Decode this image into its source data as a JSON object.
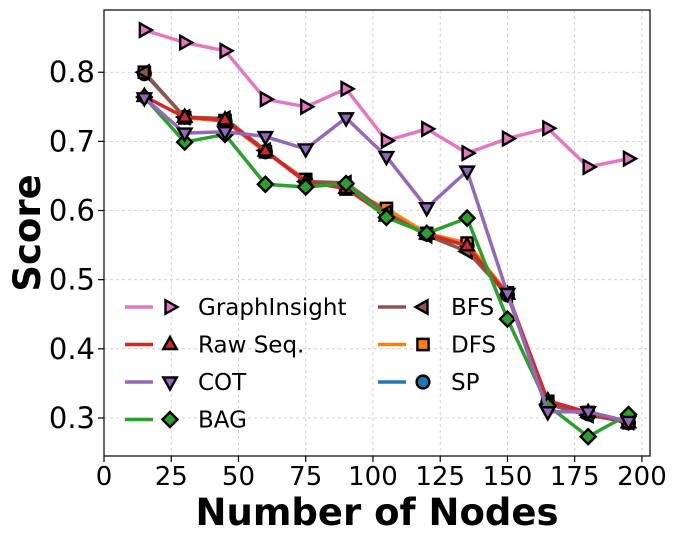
{
  "chart_data": {
    "type": "line",
    "xlabel": "Number of Nodes",
    "ylabel": "Score",
    "xlim": [
      0,
      203
    ],
    "ylim": [
      0.245,
      0.89
    ],
    "xticks": [
      0,
      25,
      50,
      75,
      100,
      125,
      150,
      175,
      200
    ],
    "yticks": [
      0.3,
      0.4,
      0.5,
      0.6,
      0.7,
      0.8
    ],
    "grid": true,
    "legend_position": "lower-left",
    "x": [
      15,
      30,
      45,
      60,
      75,
      90,
      105,
      120,
      135,
      150,
      165,
      180,
      195
    ],
    "series": [
      {
        "name": "GraphInsight",
        "color": "#e377c2",
        "marker": "triangle-right",
        "values": [
          0.861,
          0.843,
          0.831,
          0.761,
          0.75,
          0.776,
          0.701,
          0.718,
          0.683,
          0.704,
          0.719,
          0.663,
          0.675
        ]
      },
      {
        "name": "Raw Seq.",
        "color": "#d62728",
        "marker": "triangle-up",
        "values": [
          0.765,
          0.735,
          0.731,
          0.686,
          0.641,
          0.632,
          0.592,
          0.566,
          0.549,
          0.479,
          0.325,
          0.308,
          0.293
        ]
      },
      {
        "name": "COT",
        "color": "#9467bd",
        "marker": "triangle-down",
        "values": [
          0.763,
          0.712,
          0.714,
          0.707,
          0.689,
          0.734,
          0.678,
          0.604,
          0.657,
          0.48,
          0.309,
          0.309,
          0.295
        ]
      },
      {
        "name": "BAG",
        "color": "#2ca02c",
        "marker": "diamond",
        "values": [
          0.764,
          0.699,
          0.71,
          0.638,
          0.634,
          0.639,
          0.59,
          0.567,
          0.589,
          0.443,
          0.318,
          0.273,
          0.305
        ]
      },
      {
        "name": "BFS",
        "color": "#8c564b",
        "marker": "triangle-left",
        "values": [
          0.8,
          0.735,
          0.733,
          0.687,
          0.642,
          0.64,
          0.597,
          0.564,
          0.541,
          0.478,
          0.32,
          0.304,
          0.294
        ]
      },
      {
        "name": "DFS",
        "color": "#ff7f0e",
        "marker": "square",
        "values": [
          0.8,
          0.734,
          0.73,
          0.685,
          0.645,
          0.631,
          0.603,
          0.567,
          0.553,
          0.481,
          0.324,
          0.308,
          0.293
        ]
      },
      {
        "name": "SP",
        "color": "#1f77b4",
        "marker": "circle",
        "values": [
          0.798,
          0.735,
          0.729,
          0.685,
          0.643,
          0.633,
          0.595,
          0.566,
          0.549,
          0.478,
          0.322,
          0.306,
          0.293
        ]
      }
    ],
    "draw_order": [
      "SP",
      "DFS",
      "BFS",
      "Raw Seq.",
      "BAG",
      "COT",
      "GraphInsight"
    ]
  }
}
